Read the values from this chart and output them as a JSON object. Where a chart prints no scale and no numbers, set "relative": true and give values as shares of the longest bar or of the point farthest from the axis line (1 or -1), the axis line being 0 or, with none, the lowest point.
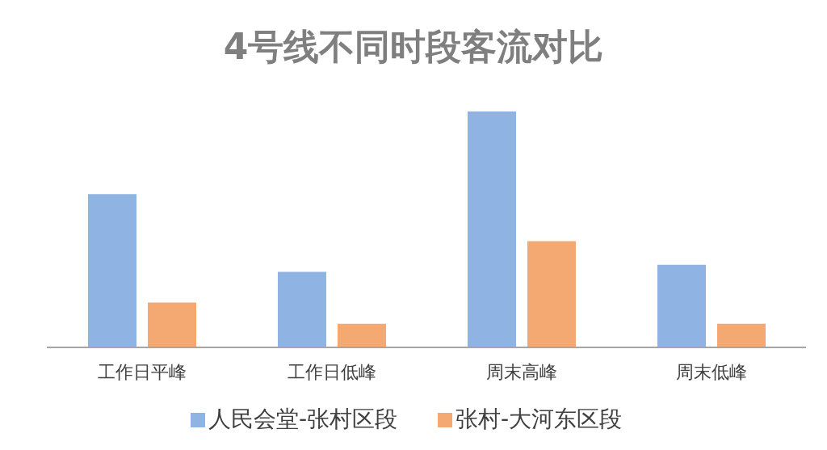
{
  "chart_data": {
    "type": "bar",
    "title": "4号线不同时段客流对比",
    "relative": true,
    "categories": [
      "工作日平峰",
      "工作日低峰",
      "周末高峰",
      "周末低峰"
    ],
    "series": [
      {
        "name": "人民会堂-张村区段",
        "color": "#8fb4e3",
        "values": [
          0.65,
          0.32,
          1,
          0.35
        ]
      },
      {
        "name": "张村-大河东区段",
        "color": "#f4a872",
        "values": [
          0.19,
          0.1,
          0.45,
          0.1
        ]
      }
    ],
    "legend": "bottom",
    "grid": false
  }
}
